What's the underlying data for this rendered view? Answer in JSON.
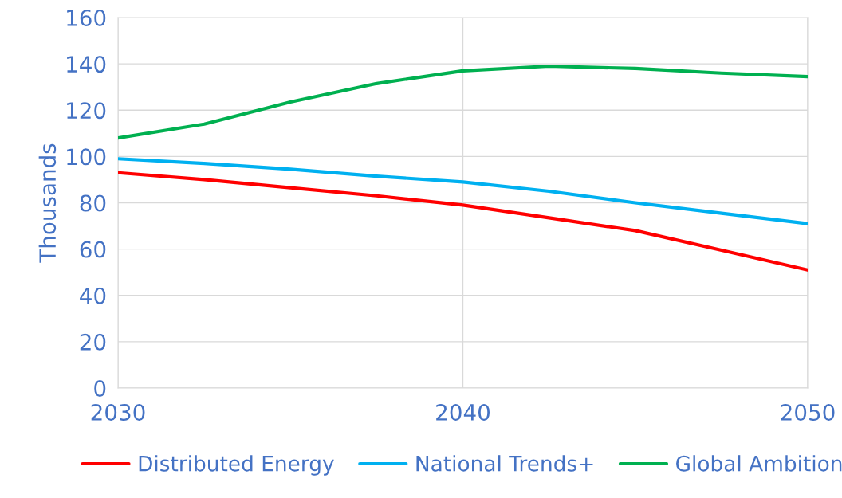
{
  "chart_data": {
    "type": "line",
    "ylabel": "Thousands",
    "x": [
      2030,
      2032.5,
      2035,
      2037.5,
      2040,
      2042.5,
      2045,
      2047.5,
      2050
    ],
    "series": [
      {
        "name": "Distributed Energy",
        "color": "#ff0000",
        "values": [
          93,
          90,
          86.5,
          83,
          79,
          73.5,
          68,
          59.5,
          51
        ]
      },
      {
        "name": "National Trends+",
        "color": "#00b0f0",
        "values": [
          99,
          97,
          94.5,
          91.5,
          89,
          85,
          80,
          75.5,
          71
        ]
      },
      {
        "name": "Global Ambition",
        "color": "#00b050",
        "values": [
          108,
          114,
          123.5,
          131.5,
          137,
          139,
          138,
          136,
          134.5
        ]
      }
    ],
    "xlim": [
      2030,
      2050
    ],
    "xticks": [
      2030,
      2040,
      2050
    ],
    "ylim": [
      0,
      160
    ],
    "yticks": [
      0,
      20,
      40,
      60,
      80,
      100,
      120,
      140,
      160
    ],
    "grid": true,
    "legend": "bottom",
    "line_style": "solid"
  }
}
